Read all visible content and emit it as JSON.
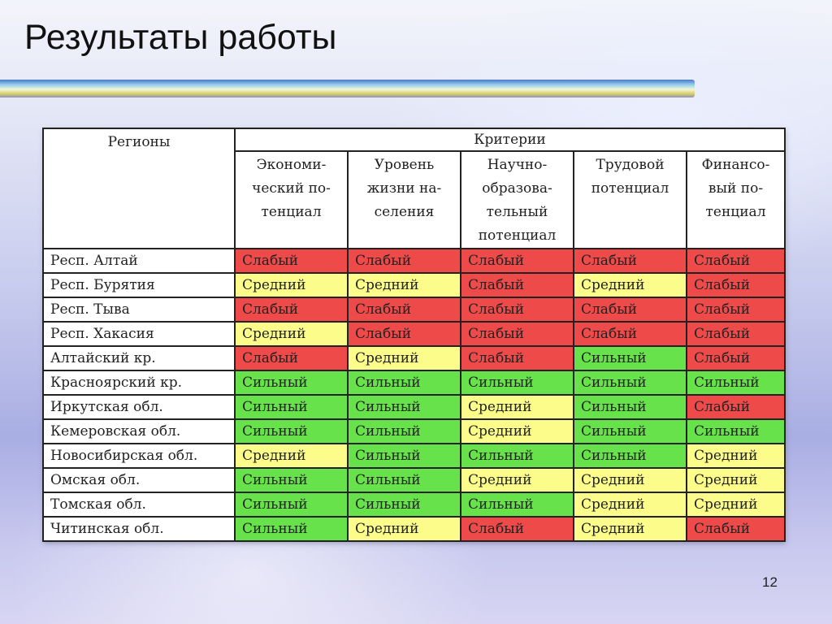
{
  "slide": {
    "title": "Результаты работы",
    "page_number": "12"
  },
  "table": {
    "region_header": "Регионы",
    "criteria_header": "Критерии",
    "columns": [
      [
        "Экономи-",
        "ческий по-",
        "тенциал"
      ],
      [
        "Уровень",
        "жизни на-",
        "селения"
      ],
      [
        "Научно-",
        "образова-",
        "тельный",
        "потенциал"
      ],
      [
        "Трудовой",
        "потенциал"
      ],
      [
        "Финансо-",
        "вый по-",
        "тенциал"
      ]
    ],
    "rows": [
      {
        "region": "Респ. Алтай",
        "values": [
          "Слабый",
          "Слабый",
          "Слабый",
          "Слабый",
          "Слабый"
        ]
      },
      {
        "region": "Респ. Бурятия",
        "values": [
          "Средний",
          "Средний",
          "Слабый",
          "Средний",
          "Слабый"
        ]
      },
      {
        "region": "Респ. Тыва",
        "values": [
          "Слабый",
          "Слабый",
          "Слабый",
          "Слабый",
          "Слабый"
        ]
      },
      {
        "region": "Респ. Хакасия",
        "values": [
          "Средний",
          "Слабый",
          "Слабый",
          "Слабый",
          "Слабый"
        ]
      },
      {
        "region": "Алтайский кр.",
        "values": [
          "Слабый",
          "Средний",
          "Слабый",
          "Сильный",
          "Слабый"
        ]
      },
      {
        "region": "Красноярский кр.",
        "values": [
          "Сильный",
          "Сильный",
          "Сильный",
          "Сильный",
          "Сильный"
        ]
      },
      {
        "region": "Иркутская обл.",
        "values": [
          "Сильный",
          "Сильный",
          "Средний",
          "Сильный",
          "Слабый"
        ]
      },
      {
        "region": "Кемеровская обл.",
        "values": [
          "Сильный",
          "Сильный",
          "Средний",
          "Сильный",
          "Сильный"
        ]
      },
      {
        "region": "Новосибирская обл.",
        "values": [
          "Средний",
          "Сильный",
          "Сильный",
          "Сильный",
          "Средний"
        ]
      },
      {
        "region": "Омская обл.",
        "values": [
          "Сильный",
          "Сильный",
          "Средний",
          "Средний",
          "Средний"
        ]
      },
      {
        "region": "Томская обл.",
        "values": [
          "Сильный",
          "Сильный",
          "Сильный",
          "Средний",
          "Средний"
        ]
      },
      {
        "region": "Читинская обл.",
        "values": [
          "Сильный",
          "Средний",
          "Слабый",
          "Средний",
          "Слабый"
        ]
      }
    ]
  },
  "colors": {
    "Слабый": "#ef4a4a",
    "Средний": "#fbfc8a",
    "Сильный": "#67e24a"
  }
}
